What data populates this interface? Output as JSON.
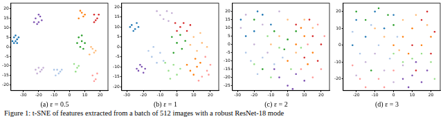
{
  "chart_data": [
    {
      "type": "scatter",
      "title": "(a) ε = 0.5",
      "grid": false,
      "xlim": [
        -38,
        25
      ],
      "xticks": [
        -30,
        -20,
        -10,
        0,
        10,
        20
      ],
      "ylim": [
        -23,
        23
      ],
      "yticks": [
        -20,
        -15,
        -10,
        -5,
        0,
        5,
        10,
        15,
        20
      ],
      "series": [
        {
          "color": "#1f77b4",
          "x": [
            -36,
            -35,
            -34,
            -36,
            -33,
            -35,
            -37,
            -34
          ],
          "values": [
            5,
            3,
            4,
            2,
            5,
            6,
            3,
            2
          ]
        },
        {
          "color": "#7b4fb0",
          "x": [
            -22,
            -20,
            -19,
            -21,
            -18,
            -20,
            -23
          ],
          "values": [
            15,
            13,
            16,
            12,
            14,
            17,
            13
          ]
        },
        {
          "color": "#c5b0d5",
          "x": [
            -22,
            -19,
            -20,
            -18,
            -21,
            -17
          ],
          "values": [
            -12,
            -13,
            -11,
            -12,
            -14,
            -11
          ]
        },
        {
          "color": "#aec7e8",
          "x": [
            -10,
            -7,
            -8,
            -6,
            -9,
            -5
          ],
          "values": [
            -12,
            -14,
            -12,
            -13,
            -15,
            -12
          ]
        },
        {
          "color": "#ff7f0e",
          "x": [
            7,
            9,
            8,
            6,
            10
          ],
          "values": [
            19,
            16,
            18,
            15,
            17
          ]
        },
        {
          "color": "#ffbb78",
          "x": [
            14,
            16,
            15,
            13,
            17
          ],
          "values": [
            0,
            -3,
            -1,
            -4,
            -2
          ]
        },
        {
          "color": "#2ca02c",
          "x": [
            6,
            8,
            7,
            9,
            5,
            8,
            10
          ],
          "values": [
            5,
            3,
            0,
            -1,
            2,
            6,
            2
          ]
        },
        {
          "color": "#d62728",
          "x": [
            16,
            18,
            17,
            19,
            16
          ],
          "values": [
            17,
            15,
            14,
            17,
            13
          ]
        },
        {
          "color": "#ff9896",
          "x": [
            15,
            17,
            18,
            16
          ],
          "values": [
            -15,
            -17,
            -14,
            -18
          ]
        },
        {
          "color": "#98df8a",
          "x": [
            3,
            5,
            4,
            6
          ],
          "values": [
            -9,
            -11,
            -13,
            -10
          ]
        }
      ]
    },
    {
      "type": "scatter",
      "title": "(b) ε = 1",
      "grid": false,
      "xlim": [
        -33,
        25
      ],
      "xticks": [
        -30,
        -20,
        -10,
        0,
        10,
        20
      ],
      "ylim": [
        -22,
        22
      ],
      "yticks": [
        -20,
        -15,
        -10,
        -5,
        0,
        5,
        10,
        15,
        20
      ],
      "series": [
        {
          "color": "#1f77b4",
          "x": [
            -27,
            -25,
            -24,
            -26,
            -23,
            -28
          ],
          "values": [
            11,
            9,
            12,
            8,
            10,
            10
          ]
        },
        {
          "color": "#7b4fb0",
          "x": [
            -23,
            -21,
            -20,
            -22,
            -19,
            -24
          ],
          "values": [
            -12,
            -10,
            -13,
            -9,
            -11,
            -11
          ]
        },
        {
          "color": "#c5b0d5",
          "x": [
            -10,
            -6,
            -8,
            -3,
            -12,
            -5
          ],
          "values": [
            16,
            18,
            14,
            17,
            18,
            13
          ]
        },
        {
          "color": "#aec7e8",
          "x": [
            -15,
            -12,
            -10,
            -17,
            -8,
            -14
          ],
          "values": [
            -5,
            -8,
            -3,
            -2,
            -7,
            0
          ]
        },
        {
          "color": "#ff7f0e",
          "x": [
            8,
            12,
            10,
            14,
            6,
            11
          ],
          "values": [
            -12,
            -10,
            -14,
            -8,
            -9,
            -6
          ]
        },
        {
          "color": "#ffbb78",
          "x": [
            10,
            15,
            12,
            18,
            8,
            14
          ],
          "values": [
            5,
            2,
            -2,
            0,
            1,
            7
          ]
        },
        {
          "color": "#2ca02c",
          "x": [
            0,
            -3,
            3,
            2,
            -2,
            5
          ],
          "values": [
            2,
            5,
            -1,
            6,
            -3,
            3
          ]
        },
        {
          "color": "#d62728",
          "x": [
            2,
            6,
            4,
            0,
            8,
            -1
          ],
          "values": [
            10,
            8,
            12,
            8,
            11,
            12
          ]
        },
        {
          "color": "#ff9896",
          "x": [
            15,
            18,
            13,
            20,
            17,
            19
          ],
          "values": [
            -15,
            -12,
            -17,
            -9,
            -5,
            -14
          ]
        },
        {
          "color": "#98df8a",
          "x": [
            -5,
            -2,
            0,
            -7,
            2,
            -4
          ],
          "values": [
            -12,
            -9,
            -14,
            -8,
            -11,
            -16
          ]
        }
      ]
    },
    {
      "type": "scatter",
      "title": "(c) ε = 2",
      "grid": false,
      "xlim": [
        -33,
        25
      ],
      "xticks": [
        -30,
        -20,
        -10,
        0,
        10,
        20
      ],
      "ylim": [
        -28,
        25
      ],
      "yticks": [
        -25,
        -20,
        -15,
        -10,
        -5,
        0,
        5,
        10,
        15,
        20
      ],
      "series": [
        {
          "color": "#1f77b4",
          "x": [
            -28,
            -20,
            -15,
            -25,
            -10,
            -18
          ],
          "values": [
            15,
            8,
            18,
            5,
            12,
            20
          ]
        },
        {
          "color": "#7b4fb0",
          "x": [
            -5,
            0,
            5,
            10,
            -8,
            3
          ],
          "values": [
            -20,
            -25,
            -18,
            -22,
            -15,
            -27
          ]
        },
        {
          "color": "#c5b0d5",
          "x": [
            -25,
            -15,
            -5,
            -20,
            -12,
            -28
          ],
          "values": [
            18,
            12,
            20,
            0,
            -5,
            10
          ]
        },
        {
          "color": "#aec7e8",
          "x": [
            -22,
            -15,
            -8,
            -18,
            -3,
            -25
          ],
          "values": [
            -10,
            -8,
            -12,
            -18,
            -8,
            -5
          ]
        },
        {
          "color": "#ff7f0e",
          "x": [
            5,
            10,
            15,
            0,
            12,
            8
          ],
          "values": [
            0,
            5,
            -5,
            -10,
            -12,
            10
          ]
        },
        {
          "color": "#ffbb78",
          "x": [
            -5,
            0,
            10,
            15,
            -10,
            5
          ],
          "values": [
            5,
            15,
            15,
            10,
            0,
            -5
          ]
        },
        {
          "color": "#2ca02c",
          "x": [
            -20,
            -8,
            0,
            -15,
            5,
            -2
          ],
          "values": [
            15,
            8,
            3,
            -15,
            8,
            -3
          ]
        },
        {
          "color": "#d62728",
          "x": [
            15,
            18,
            20,
            10,
            13,
            5
          ],
          "values": [
            5,
            -10,
            0,
            -8,
            15,
            12
          ]
        },
        {
          "color": "#ff9896",
          "x": [
            18,
            20,
            12,
            8,
            15,
            22
          ],
          "values": [
            12,
            -15,
            0,
            -15,
            -20,
            5
          ]
        },
        {
          "color": "#98df8a",
          "x": [
            -10,
            -5,
            2,
            -12,
            8,
            -20
          ],
          "values": [
            -20,
            -2,
            -15,
            5,
            -2,
            -12
          ]
        }
      ]
    },
    {
      "type": "scatter",
      "title": "(d) ε = 3",
      "grid": false,
      "xlim": [
        -27,
        25
      ],
      "xticks": [
        -20,
        -10,
        0,
        10,
        20
      ],
      "ylim": [
        -27,
        25
      ],
      "yticks": [
        -20,
        -10,
        0,
        10,
        20
      ],
      "series": [
        {
          "color": "#1f77b4",
          "x": [
            -20,
            -10,
            -15,
            -5,
            -22,
            0
          ],
          "values": [
            15,
            20,
            5,
            10,
            0,
            18
          ]
        },
        {
          "color": "#7b4fb0",
          "x": [
            10,
            15,
            5,
            18,
            12,
            8
          ],
          "values": [
            -18,
            -22,
            -20,
            -15,
            -10,
            -25
          ]
        },
        {
          "color": "#c5b0d5",
          "x": [
            -15,
            -5,
            0,
            -20,
            -10,
            5
          ],
          "values": [
            -10,
            -15,
            -22,
            -18,
            -5,
            -12
          ]
        },
        {
          "color": "#aec7e8",
          "x": [
            -18,
            -8,
            -12,
            -2,
            -22,
            2
          ],
          "values": [
            -5,
            0,
            12,
            -8,
            8,
            5
          ]
        },
        {
          "color": "#ff7f0e",
          "x": [
            5,
            10,
            15,
            0,
            20,
            8
          ],
          "values": [
            5,
            10,
            0,
            0,
            5,
            -5
          ]
        },
        {
          "color": "#ffbb78",
          "x": [
            -5,
            5,
            12,
            -10,
            18,
            3
          ],
          "values": [
            5,
            15,
            18,
            10,
            12,
            -3
          ]
        },
        {
          "color": "#2ca02c",
          "x": [
            -20,
            -15,
            -8,
            0,
            -12,
            -3
          ],
          "values": [
            20,
            15,
            22,
            12,
            -15,
            18
          ]
        },
        {
          "color": "#d62728",
          "x": [
            15,
            20,
            10,
            18,
            12,
            22
          ],
          "values": [
            15,
            -5,
            0,
            20,
            -15,
            8
          ]
        },
        {
          "color": "#ff9896",
          "x": [
            -18,
            -8,
            -15,
            0,
            -22,
            -5
          ],
          "values": [
            -20,
            -20,
            -25,
            -15,
            -12,
            -25
          ]
        },
        {
          "color": "#98df8a",
          "x": [
            10,
            20,
            15,
            5,
            22,
            0
          ],
          "values": [
            -8,
            -10,
            -5,
            -10,
            -20,
            -5
          ]
        }
      ]
    }
  ],
  "caption": "Figure 1: t-SNE of features extracted from a batch of 512 images with a robust ResNet-18 mode"
}
